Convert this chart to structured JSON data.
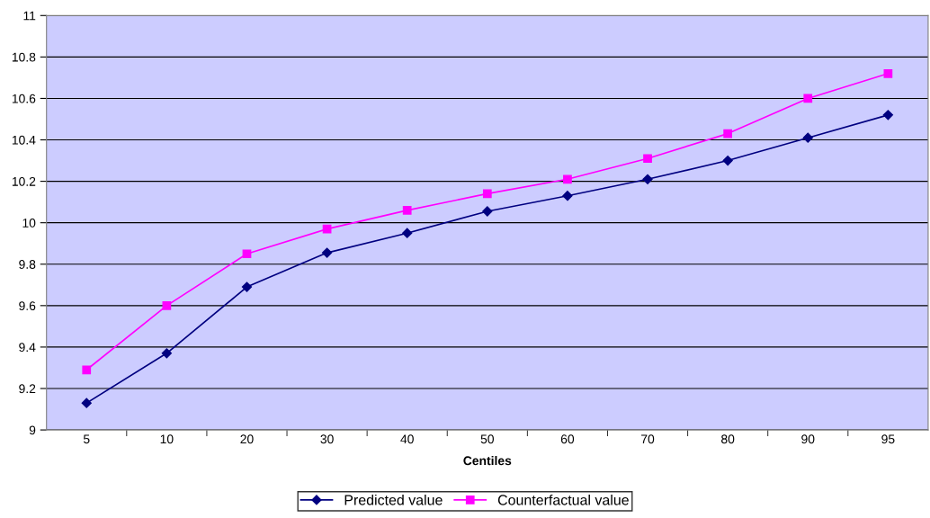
{
  "chart_data": {
    "type": "line",
    "xlabel": "Centiles",
    "categories": [
      "5",
      "10",
      "20",
      "30",
      "40",
      "50",
      "60",
      "70",
      "80",
      "90",
      "95"
    ],
    "series": [
      {
        "name": "Predicted value",
        "color": "#000080",
        "marker": "diamond",
        "values": [
          9.13,
          9.37,
          9.69,
          9.855,
          9.95,
          10.055,
          10.13,
          10.21,
          10.3,
          10.41,
          10.52
        ]
      },
      {
        "name": "Counterfactual value",
        "color": "#ff00ff",
        "marker": "square",
        "values": [
          9.29,
          9.6,
          9.85,
          9.97,
          10.06,
          10.14,
          10.21,
          10.31,
          10.43,
          10.6,
          10.72
        ]
      }
    ],
    "ylim": [
      9,
      11
    ],
    "yticks": [
      9,
      9.2,
      9.4,
      9.6,
      9.8,
      10,
      10.2,
      10.4,
      10.6,
      10.8,
      11
    ],
    "grid": "y",
    "legend": "bottom"
  }
}
